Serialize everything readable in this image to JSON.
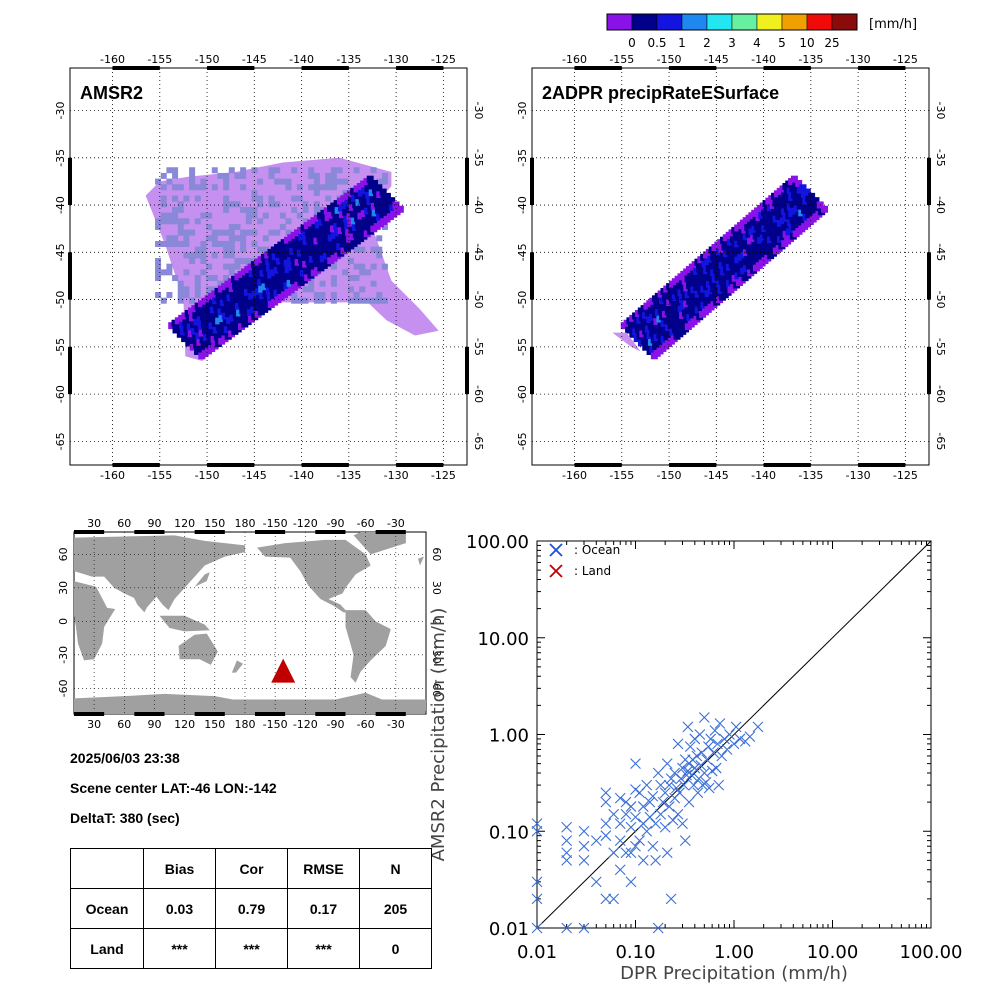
{
  "colorbar": {
    "unit": "[mm/h]",
    "colors": [
      "#8a12e8",
      "#00008b",
      "#1414e0",
      "#1e88f0",
      "#22e6f0",
      "#66f0a0",
      "#f0f01e",
      "#f0a000",
      "#f00a0a",
      "#8b0a0a"
    ],
    "ticks": [
      "0",
      "0.5",
      "1",
      "2",
      "3",
      "4",
      "5",
      "10",
      "25"
    ]
  },
  "maps": [
    {
      "title": "AMSR2",
      "lon_ticks": [
        "-160",
        "-155",
        "-150",
        "-145",
        "-140",
        "-135",
        "-130",
        "-125"
      ],
      "lat_ticks": [
        "-30",
        "-35",
        "-40",
        "-45",
        "-50",
        "-55",
        "-60",
        "-65"
      ]
    },
    {
      "title": "2ADPR precipRateESurface",
      "lon_ticks": [
        "-160",
        "-155",
        "-150",
        "-145",
        "-140",
        "-135",
        "-130",
        "-125"
      ],
      "lat_ticks": [
        "-30",
        "-35",
        "-40",
        "-45",
        "-50",
        "-55",
        "-60",
        "-65"
      ]
    }
  ],
  "world_map": {
    "top_ticks": [
      "30",
      "60",
      "90",
      "120",
      "150",
      "180",
      "-150",
      "-120",
      "-90",
      "-60",
      "-30"
    ],
    "lat_ticks": [
      "60",
      "30",
      "0",
      "-30",
      "-60"
    ],
    "marker_color": "#c00000"
  },
  "info": {
    "datetime": "2025/06/03 23:38",
    "scene_center": "Scene center LAT:-46   LON:-142",
    "deltat": "DeltaT:  380 (sec)"
  },
  "stats_table": {
    "headers": [
      "",
      "Bias",
      "Cor",
      "RMSE",
      "N"
    ],
    "rows": [
      [
        "Ocean",
        "0.03",
        "0.79",
        "0.17",
        "205"
      ],
      [
        "Land",
        "***",
        "***",
        "***",
        "0"
      ]
    ]
  },
  "chart_data": {
    "type": "scatter",
    "xlabel": "DPR Precipitation (mm/h)",
    "ylabel": "AMSR2 Precipitation (mm/h)",
    "xlim": [
      0.01,
      100
    ],
    "ylim": [
      0.01,
      100
    ],
    "log_scale": true,
    "tick_labels": [
      "0.01",
      "0.10",
      "1.00",
      "10.00",
      "100.00"
    ],
    "reference_line": "1:1",
    "legend": [
      {
        "name": ": Ocean",
        "color": "#1a4fd8"
      },
      {
        "name": ": Land",
        "color": "#c00000"
      }
    ],
    "legend_position": "top-left",
    "series": [
      {
        "name": ": Ocean",
        "color": "#3a6fd8",
        "points": [
          [
            0.01,
            0.12
          ],
          [
            0.01,
            0.1
          ],
          [
            0.01,
            0.03
          ],
          [
            0.01,
            0.02
          ],
          [
            0.01,
            0.01
          ],
          [
            0.02,
            0.11
          ],
          [
            0.02,
            0.08
          ],
          [
            0.02,
            0.06
          ],
          [
            0.02,
            0.05
          ],
          [
            0.02,
            0.01
          ],
          [
            0.03,
            0.1
          ],
          [
            0.03,
            0.07
          ],
          [
            0.03,
            0.05
          ],
          [
            0.03,
            0.01
          ],
          [
            0.04,
            0.03
          ],
          [
            0.04,
            0.08
          ],
          [
            0.05,
            0.12
          ],
          [
            0.05,
            0.09
          ],
          [
            0.05,
            0.25
          ],
          [
            0.05,
            0.2
          ],
          [
            0.05,
            0.02
          ],
          [
            0.06,
            0.15
          ],
          [
            0.06,
            0.06
          ],
          [
            0.06,
            0.02
          ],
          [
            0.07,
            0.22
          ],
          [
            0.07,
            0.12
          ],
          [
            0.07,
            0.08
          ],
          [
            0.07,
            0.04
          ],
          [
            0.08,
            0.2
          ],
          [
            0.08,
            0.15
          ],
          [
            0.08,
            0.06
          ],
          [
            0.09,
            0.18
          ],
          [
            0.09,
            0.11
          ],
          [
            0.09,
            0.06
          ],
          [
            0.09,
            0.03
          ],
          [
            0.1,
            0.5
          ],
          [
            0.1,
            0.27
          ],
          [
            0.1,
            0.14
          ],
          [
            0.1,
            0.07
          ],
          [
            0.11,
            0.25
          ],
          [
            0.11,
            0.08
          ],
          [
            0.12,
            0.18
          ],
          [
            0.12,
            0.12
          ],
          [
            0.12,
            0.05
          ],
          [
            0.13,
            0.3
          ],
          [
            0.13,
            0.1
          ],
          [
            0.14,
            0.2
          ],
          [
            0.14,
            0.14
          ],
          [
            0.15,
            0.23
          ],
          [
            0.15,
            0.07
          ],
          [
            0.16,
            0.12
          ],
          [
            0.16,
            0.05
          ],
          [
            0.17,
            0.4
          ],
          [
            0.17,
            0.01
          ],
          [
            0.18,
            0.3
          ],
          [
            0.18,
            0.15
          ],
          [
            0.19,
            0.2
          ],
          [
            0.2,
            0.25
          ],
          [
            0.2,
            0.11
          ],
          [
            0.21,
            0.5
          ],
          [
            0.21,
            0.06
          ],
          [
            0.22,
            0.3
          ],
          [
            0.22,
            0.18
          ],
          [
            0.23,
            0.35
          ],
          [
            0.23,
            0.02
          ],
          [
            0.24,
            0.13
          ],
          [
            0.25,
            0.4
          ],
          [
            0.25,
            0.22
          ],
          [
            0.26,
            0.28
          ],
          [
            0.27,
            0.8
          ],
          [
            0.27,
            0.15
          ],
          [
            0.28,
            0.25
          ],
          [
            0.29,
            0.35
          ],
          [
            0.3,
            0.45
          ],
          [
            0.3,
            0.12
          ],
          [
            0.31,
            0.3
          ],
          [
            0.32,
            0.55
          ],
          [
            0.32,
            0.08
          ],
          [
            0.33,
            0.38
          ],
          [
            0.34,
            1.2
          ],
          [
            0.34,
            0.42
          ],
          [
            0.35,
            0.5
          ],
          [
            0.35,
            0.2
          ],
          [
            0.36,
            0.75
          ],
          [
            0.37,
            0.38
          ],
          [
            0.38,
            0.55
          ],
          [
            0.39,
            0.3
          ],
          [
            0.4,
            0.45
          ],
          [
            0.4,
            0.9
          ],
          [
            0.42,
            0.6
          ],
          [
            0.43,
            0.25
          ],
          [
            0.44,
            0.35
          ],
          [
            0.45,
            1.0
          ],
          [
            0.46,
            0.48
          ],
          [
            0.47,
            0.65
          ],
          [
            0.48,
            0.3
          ],
          [
            0.5,
            0.4
          ],
          [
            0.5,
            1.5
          ],
          [
            0.52,
            0.32
          ],
          [
            0.53,
            0.55
          ],
          [
            0.55,
            0.75
          ],
          [
            0.56,
            0.28
          ],
          [
            0.58,
            0.9
          ],
          [
            0.6,
            0.42
          ],
          [
            0.62,
            0.65
          ],
          [
            0.64,
            1.1
          ],
          [
            0.66,
            0.45
          ],
          [
            0.68,
            0.8
          ],
          [
            0.7,
            0.3
          ],
          [
            0.72,
            1.3
          ],
          [
            0.75,
            0.6
          ],
          [
            0.8,
            0.9
          ],
          [
            0.85,
            0.7
          ],
          [
            0.9,
            1.0
          ],
          [
            1.0,
            0.8
          ],
          [
            1.05,
            1.2
          ],
          [
            1.15,
            0.9
          ],
          [
            1.3,
            0.85
          ],
          [
            1.45,
            0.95
          ],
          [
            1.75,
            1.2
          ]
        ]
      },
      {
        "name": ": Land",
        "color": "#c00000",
        "points": []
      }
    ]
  }
}
